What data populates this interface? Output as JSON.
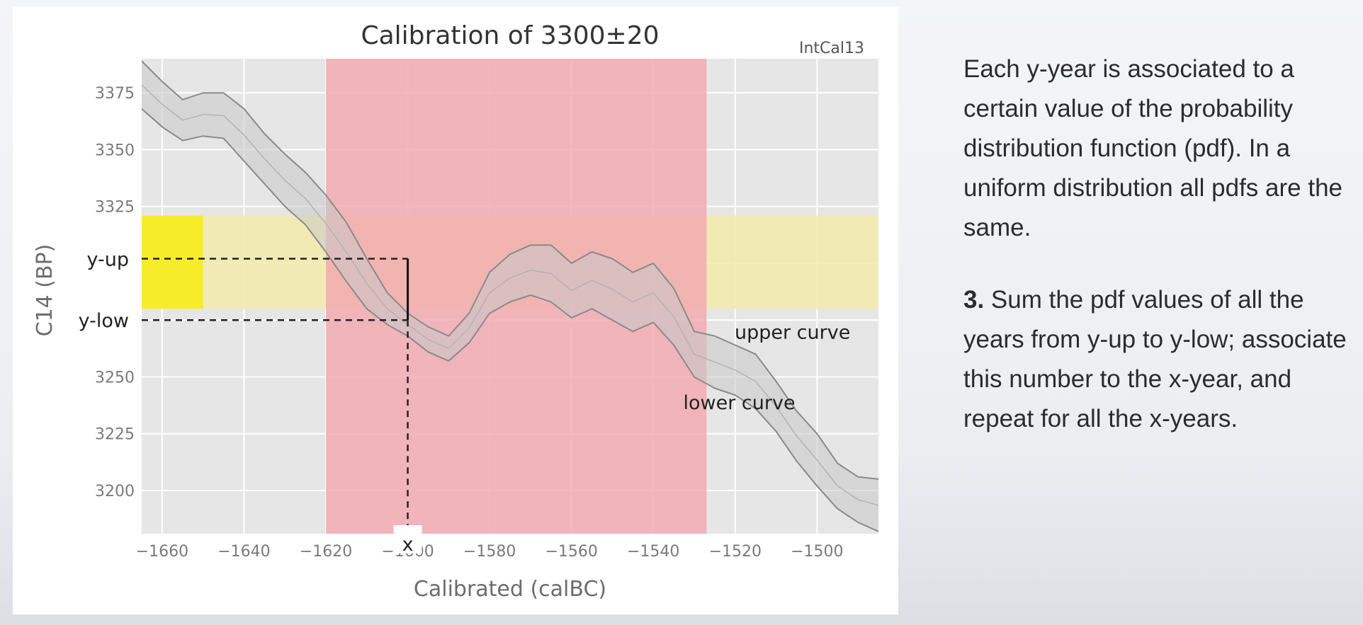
{
  "chart_data": {
    "type": "area",
    "title": "Calibration of 3300±20",
    "corner_label": "IntCal13",
    "xlabel": "Calibrated (calBC)",
    "ylabel": "C14 (BP)",
    "xlim": [
      -1665,
      -1485
    ],
    "ylim": [
      3181,
      3390
    ],
    "xticks": [
      -1660,
      -1640,
      -1620,
      -1600,
      -1580,
      -1560,
      -1540,
      -1520,
      -1500
    ],
    "xtick_labels": [
      "−1660",
      "−1640",
      "−1620",
      "−1600",
      "−1580",
      "−1560",
      "−1540",
      "−1520",
      "−1500"
    ],
    "yticks": [
      3200,
      3225,
      3250,
      3275,
      3300,
      3325,
      3350,
      3375
    ],
    "ytick_labels": [
      "3200",
      "3225",
      "3250",
      "",
      "",
      "3325",
      "3350",
      "3375"
    ],
    "grid": true,
    "x": [
      -1665,
      -1660,
      -1655,
      -1650,
      -1645,
      -1640,
      -1635,
      -1630,
      -1625,
      -1620,
      -1615,
      -1610,
      -1605,
      -1600,
      -1595,
      -1590,
      -1585,
      -1580,
      -1575,
      -1570,
      -1565,
      -1560,
      -1555,
      -1550,
      -1545,
      -1540,
      -1535,
      -1530,
      -1525,
      -1520,
      -1515,
      -1510,
      -1505,
      -1500,
      -1495,
      -1490,
      -1485
    ],
    "upper_curve": [
      3389,
      3380,
      3372,
      3375,
      3375,
      3368,
      3357,
      3348,
      3340,
      3330,
      3318,
      3302,
      3287,
      3278,
      3272,
      3268,
      3278,
      3296,
      3304,
      3308,
      3308,
      3300,
      3305,
      3302,
      3296,
      3300,
      3289,
      3270,
      3268,
      3264,
      3260,
      3248,
      3235,
      3225,
      3212,
      3206,
      3205
    ],
    "lower_curve": [
      3368,
      3360,
      3354,
      3356,
      3355,
      3345,
      3335,
      3325,
      3317,
      3305,
      3292,
      3280,
      3273,
      3268,
      3261,
      3257,
      3265,
      3278,
      3283,
      3286,
      3283,
      3276,
      3280,
      3275,
      3270,
      3274,
      3264,
      3250,
      3245,
      3242,
      3236,
      3226,
      3213,
      3202,
      3192,
      3186,
      3182
    ],
    "highlight_x": [
      -1620,
      -1527
    ],
    "highlight_y": [
      3280,
      3321
    ],
    "yellow_block": {
      "x": [
        -1665,
        -1650
      ],
      "y": [
        3280,
        3321
      ]
    },
    "construction": {
      "x_year": -1600,
      "y_up": 3302,
      "y_low": 3275
    },
    "annotations": {
      "y_up": "y-up",
      "y_low": "y-low",
      "x": "x",
      "upper": "upper curve",
      "lower": "lower curve"
    },
    "colors": {
      "plot_bg": "#e6e6e6",
      "grid": "#ffffff",
      "band": "#c9c9c9",
      "curve_line": "#8a8a8a",
      "red_region": "#f2a8b0",
      "yellow_band": "#f3eaaa",
      "yellow_block": "#f7ec2a"
    }
  },
  "explanation": {
    "para1": "Each y-year is associated to a certain value of the probability distribution function (pdf). In a uniform distribution all pdfs are the same.",
    "step_number": "3.",
    "step_text": " Sum the pdf values of all the years from y-up to y-low; associate this number to the x-year, and repeat for all the x-years."
  }
}
